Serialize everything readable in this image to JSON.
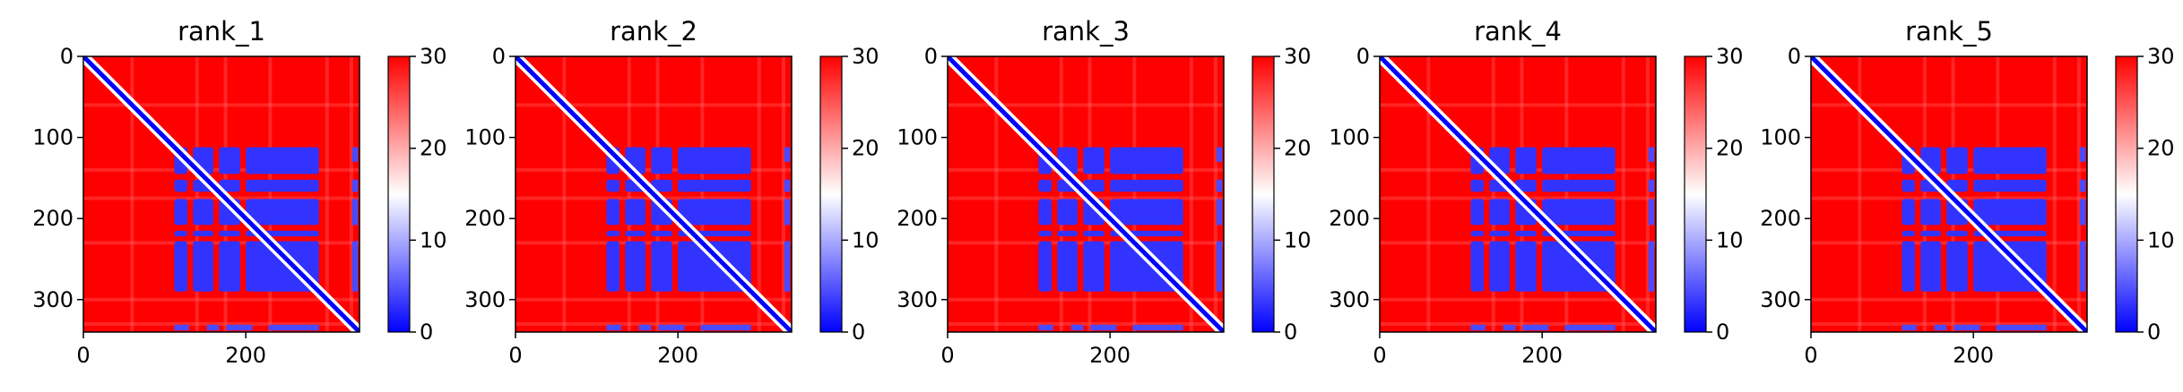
{
  "chart_data": [
    {
      "type": "heatmap",
      "title": "rank_1",
      "x_ticks": [
        0,
        200
      ],
      "y_ticks": [
        0,
        100,
        200,
        300
      ],
      "xlim": [
        0,
        340
      ],
      "ylim": [
        340,
        0
      ],
      "colorbar": {
        "ticks": [
          0,
          10,
          20,
          30
        ],
        "range": [
          0,
          30
        ],
        "colormap": "bwr"
      },
      "diagonal_value": 0,
      "background_value": 30,
      "blocks_lowvalue": [
        {
          "x": [
            112,
            290
          ],
          "y": [
            112,
            290
          ],
          "value": 3
        }
      ]
    },
    {
      "type": "heatmap",
      "title": "rank_2",
      "x_ticks": [
        0,
        200
      ],
      "y_ticks": [
        0,
        100,
        200,
        300
      ],
      "xlim": [
        0,
        340
      ],
      "ylim": [
        340,
        0
      ],
      "colorbar": {
        "ticks": [
          0,
          10,
          20,
          30
        ],
        "range": [
          0,
          30
        ],
        "colormap": "bwr"
      },
      "diagonal_value": 0,
      "background_value": 30,
      "blocks_lowvalue": [
        {
          "x": [
            112,
            290
          ],
          "y": [
            112,
            290
          ],
          "value": 3
        }
      ]
    },
    {
      "type": "heatmap",
      "title": "rank_3",
      "x_ticks": [
        0,
        200
      ],
      "y_ticks": [
        0,
        100,
        200,
        300
      ],
      "xlim": [
        0,
        340
      ],
      "ylim": [
        340,
        0
      ],
      "colorbar": {
        "ticks": [
          0,
          10,
          20,
          30
        ],
        "range": [
          0,
          30
        ],
        "colormap": "bwr"
      },
      "diagonal_value": 0,
      "background_value": 30,
      "blocks_lowvalue": [
        {
          "x": [
            112,
            290
          ],
          "y": [
            112,
            290
          ],
          "value": 3
        }
      ]
    },
    {
      "type": "heatmap",
      "title": "rank_4",
      "x_ticks": [
        0,
        200
      ],
      "y_ticks": [
        0,
        100,
        200,
        300
      ],
      "xlim": [
        0,
        340
      ],
      "ylim": [
        340,
        0
      ],
      "colorbar": {
        "ticks": [
          0,
          10,
          20,
          30
        ],
        "range": [
          0,
          30
        ],
        "colormap": "bwr"
      },
      "diagonal_value": 0,
      "background_value": 30,
      "blocks_lowvalue": [
        {
          "x": [
            112,
            290
          ],
          "y": [
            112,
            290
          ],
          "value": 3
        }
      ]
    },
    {
      "type": "heatmap",
      "title": "rank_5",
      "x_ticks": [
        0,
        200
      ],
      "y_ticks": [
        0,
        100,
        200,
        300
      ],
      "xlim": [
        0,
        340
      ],
      "ylim": [
        340,
        0
      ],
      "colorbar": {
        "ticks": [
          0,
          10,
          20,
          30
        ],
        "range": [
          0,
          30
        ],
        "colormap": "bwr"
      },
      "diagonal_value": 0,
      "background_value": 30,
      "blocks_lowvalue": [
        {
          "x": [
            112,
            290
          ],
          "y": [
            112,
            290
          ],
          "value": 3
        }
      ]
    }
  ],
  "colors": {
    "high": "#ff0000",
    "mid": "#ffffff",
    "low": "#0000ff"
  }
}
